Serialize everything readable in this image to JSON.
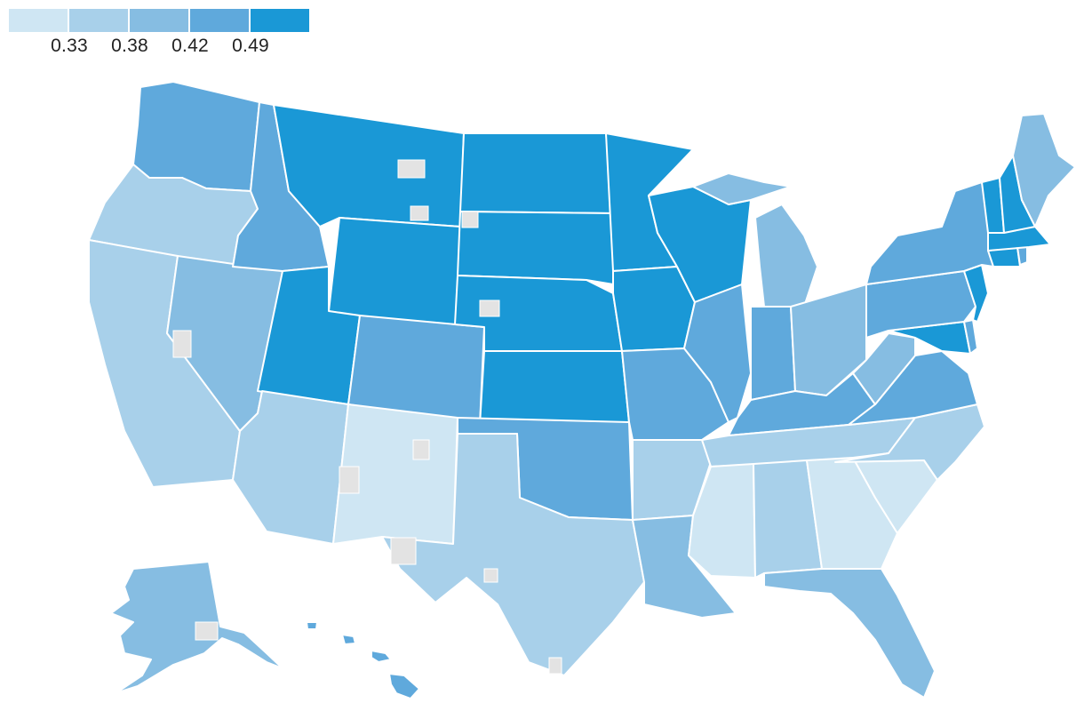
{
  "legend": {
    "colors": [
      "#cfe6f3",
      "#a8d0ea",
      "#86bde2",
      "#5fa9dc",
      "#1a98d6"
    ],
    "thresholds": [
      "0.33",
      "0.38",
      "0.42",
      "0.49"
    ]
  },
  "map": {
    "no_data_color": "#e3e3e3",
    "border_color": "#ffffff",
    "regions": [
      {
        "name": "Alaska",
        "level": 2
      },
      {
        "name": "Hawaii",
        "level": 3
      },
      {
        "name": "Washington",
        "level": 3
      },
      {
        "name": "Oregon",
        "level": 1
      },
      {
        "name": "California",
        "level": 1
      },
      {
        "name": "Nevada",
        "level": 2
      },
      {
        "name": "Idaho",
        "level": 3
      },
      {
        "name": "Montana",
        "level": 4
      },
      {
        "name": "Wyoming",
        "level": 4
      },
      {
        "name": "Utah",
        "level": 4
      },
      {
        "name": "Arizona",
        "level": 1
      },
      {
        "name": "Colorado",
        "level": 3
      },
      {
        "name": "New Mexico",
        "level": 0
      },
      {
        "name": "North Dakota",
        "level": 4
      },
      {
        "name": "South Dakota",
        "level": 4
      },
      {
        "name": "Nebraska",
        "level": 4
      },
      {
        "name": "Kansas",
        "level": 4
      },
      {
        "name": "Oklahoma",
        "level": 3
      },
      {
        "name": "Texas",
        "level": 1
      },
      {
        "name": "Minnesota",
        "level": 4
      },
      {
        "name": "Iowa",
        "level": 4
      },
      {
        "name": "Missouri",
        "level": 3
      },
      {
        "name": "Arkansas",
        "level": 1
      },
      {
        "name": "Louisiana",
        "level": 2
      },
      {
        "name": "Wisconsin",
        "level": 4
      },
      {
        "name": "Illinois",
        "level": 3
      },
      {
        "name": "Michigan",
        "level": 2
      },
      {
        "name": "Indiana",
        "level": 3
      },
      {
        "name": "Ohio",
        "level": 2
      },
      {
        "name": "Kentucky",
        "level": 3
      },
      {
        "name": "Tennessee",
        "level": 1
      },
      {
        "name": "Mississippi",
        "level": 0
      },
      {
        "name": "Alabama",
        "level": 1
      },
      {
        "name": "Georgia",
        "level": 0
      },
      {
        "name": "Florida",
        "level": 2
      },
      {
        "name": "South Carolina",
        "level": 0
      },
      {
        "name": "North Carolina",
        "level": 1
      },
      {
        "name": "Virginia",
        "level": 3
      },
      {
        "name": "West Virginia",
        "level": 2
      },
      {
        "name": "Maryland",
        "level": 4
      },
      {
        "name": "Delaware",
        "level": 3
      },
      {
        "name": "Pennsylvania",
        "level": 3
      },
      {
        "name": "New York",
        "level": 3
      },
      {
        "name": "New Jersey",
        "level": 4
      },
      {
        "name": "Connecticut",
        "level": 4
      },
      {
        "name": "Rhode Island",
        "level": 3
      },
      {
        "name": "Massachusetts",
        "level": 4
      },
      {
        "name": "Vermont",
        "level": 4
      },
      {
        "name": "New Hampshire",
        "level": 4
      },
      {
        "name": "Maine",
        "level": 2
      }
    ]
  }
}
